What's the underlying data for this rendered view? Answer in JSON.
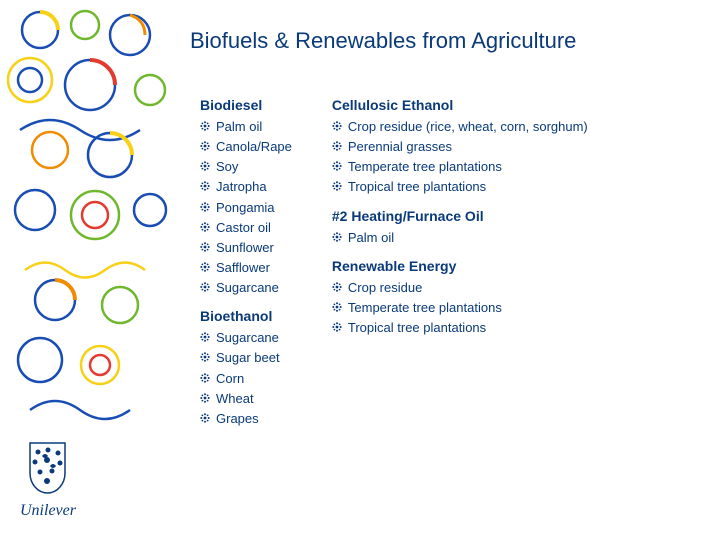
{
  "title": "Biofuels & Renewables from Agriculture",
  "colors": {
    "text": "#0a3a7a",
    "deco_blue": "#1a4db3",
    "deco_yellow": "#f7d117",
    "deco_orange": "#f08c00",
    "deco_green": "#6fb82e",
    "deco_red": "#e13c2f",
    "background": "#ffffff"
  },
  "typography": {
    "title_fontsize": 22,
    "section_fontsize": 14,
    "item_fontsize": 13
  },
  "columns": [
    {
      "sections": [
        {
          "title": "Biodiesel",
          "items": [
            "Palm oil",
            "Canola/Rape",
            "Soy",
            "Jatropha",
            "Pongamia",
            "Castor oil",
            "Sunflower",
            "Safflower",
            "Sugarcane"
          ]
        },
        {
          "title": "Bioethanol",
          "items": [
            "Sugarcane",
            "Sugar beet",
            "Corn",
            "Wheat",
            "Grapes"
          ]
        }
      ]
    },
    {
      "sections": [
        {
          "title": "Cellulosic Ethanol",
          "items": [
            "Crop residue (rice, wheat, corn, sorghum)",
            "Perennial grasses",
            "Temperate tree plantations",
            "Tropical tree plantations"
          ]
        },
        {
          "title": "#2 Heating/Furnace Oil",
          "items": [
            "Palm oil"
          ]
        },
        {
          "title": "Renewable Energy",
          "items": [
            "Crop residue",
            "Temperate tree plantations",
            "Tropical tree plantations"
          ]
        }
      ]
    }
  ],
  "logo": {
    "text": "Unilever"
  }
}
